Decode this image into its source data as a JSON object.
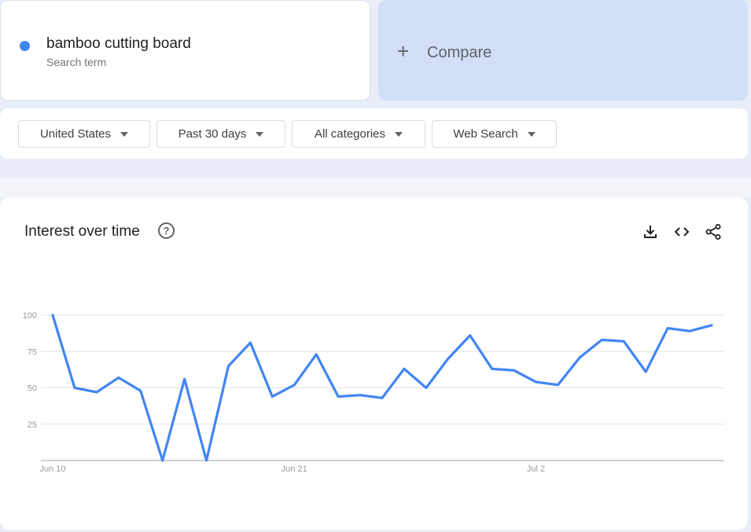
{
  "term": {
    "name": "bamboo cutting board",
    "subtitle": "Search term",
    "color": "#4285f4"
  },
  "compare": {
    "label": "Compare"
  },
  "filters": [
    {
      "label": "United States"
    },
    {
      "label": "Past 30 days"
    },
    {
      "label": "All categories"
    },
    {
      "label": "Web Search"
    }
  ],
  "chart_card": {
    "title": "Interest over time",
    "icons": [
      "help-icon",
      "download-icon",
      "embed-code-icon",
      "share-icon"
    ]
  },
  "chart_data": {
    "type": "line",
    "x_tick_labels": [
      "Jun 10",
      "Jun 21",
      "Jul 2"
    ],
    "x_tick_index": [
      0,
      11,
      22
    ],
    "y_ticks": [
      25,
      50,
      75,
      100
    ],
    "ylim": [
      0,
      100
    ],
    "grid": true,
    "series": [
      {
        "color": "#4285f4",
        "values": [
          100,
          50,
          47,
          57,
          48,
          0,
          56,
          0,
          65,
          81,
          44,
          52,
          73,
          44,
          45,
          43,
          63,
          50,
          70,
          86,
          63,
          62,
          54,
          52,
          71,
          83,
          82,
          61,
          91,
          89,
          93
        ]
      }
    ]
  }
}
